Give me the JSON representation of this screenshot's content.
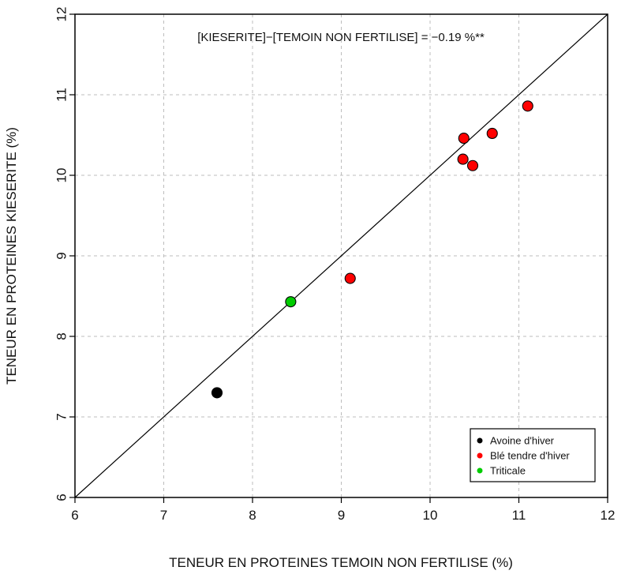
{
  "chart_data": {
    "type": "scatter",
    "xlabel": "TENEUR EN PROTEINES TEMOIN NON FERTILISE (%)",
    "ylabel": "TENEUR EN PROTEINES KIESERITE (%)",
    "annotation": "[KIESERITE]−[TEMOIN NON FERTILISE] = −0.19 %**",
    "xlim": [
      6,
      12
    ],
    "ylim": [
      6,
      12
    ],
    "xticks": [
      "6",
      "7",
      "8",
      "9",
      "10",
      "11",
      "12"
    ],
    "yticks": [
      "6",
      "7",
      "8",
      "9",
      "10",
      "11",
      "12"
    ],
    "grid": true,
    "reference_line": "y = x",
    "legend_position": "bottom-right",
    "series": [
      {
        "name": "Avoine d'hiver",
        "color": "#000000",
        "points": [
          {
            "x": 7.6,
            "y": 7.3
          }
        ]
      },
      {
        "name": "Blé tendre d'hiver",
        "color": "#ff0000",
        "points": [
          {
            "x": 11.1,
            "y": 10.86
          },
          {
            "x": 10.7,
            "y": 10.52
          },
          {
            "x": 10.38,
            "y": 10.46
          },
          {
            "x": 10.37,
            "y": 10.2
          },
          {
            "x": 10.48,
            "y": 10.12
          },
          {
            "x": 9.1,
            "y": 8.72
          }
        ]
      },
      {
        "name": "Triticale",
        "color": "#00cc00",
        "points": [
          {
            "x": 8.43,
            "y": 8.43
          }
        ]
      }
    ]
  }
}
